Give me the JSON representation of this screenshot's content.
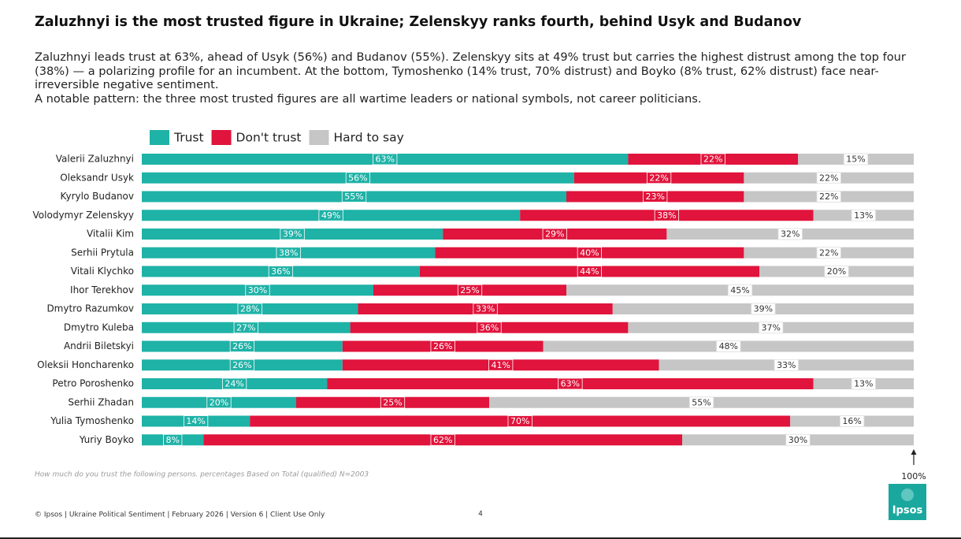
{
  "header": {
    "title": "Zaluzhnyi is the most trusted figure in Ukraine; Zelenskyy ranks fourth, behind Usyk and Budanov",
    "paragraphs": [
      "Zaluzhnyi leads trust at 63%, ahead of Usyk (56%) and Budanov (55%). Zelenskyy sits at 49% trust but carries the highest distrust among the top four (38%) — a polarizing profile for an incumbent. At the bottom, Tymoshenko (14% trust, 70% distrust) and Boyko (8% trust, 62% distrust) face near-irreversible negative sentiment.",
      "A notable pattern: the three most trusted figures are all wartime leaders or national symbols, not career politicians."
    ]
  },
  "chart_data": {
    "type": "stacked_bar_horizontal",
    "categories": [
      "Valerii Zaluzhnyi",
      "Oleksandr Usyk",
      "Kyrylo Budanov",
      "Volodymyr Zelenskyy",
      "Vitalii Kim",
      "Serhii Prytula",
      "Vitali Klychko",
      "Ihor Terekhov",
      "Dmytro Razumkov",
      "Dmytro Kuleba",
      "Andrii Biletskyi",
      "Oleksii Honcharenko",
      "Petro Poroshenko",
      "Serhii Zhadan",
      "Yulia Tymoshenko",
      "Yuriy Boyko"
    ],
    "series": [
      {
        "name": "Trust",
        "color": "#1fb2a7",
        "values": [
          63,
          56,
          55,
          49,
          39,
          38,
          36,
          30,
          28,
          27,
          26,
          26,
          24,
          20,
          14,
          8
        ],
        "value_labels": [
          "63%",
          "56%",
          "55%",
          "49%",
          "39%",
          "38%",
          "36%",
          "30%",
          "28%",
          "27%",
          "26%",
          "26%",
          "24%",
          "20%",
          "14%",
          "8%"
        ]
      },
      {
        "name": "Don't trust",
        "color": "#e0143c",
        "values": [
          22,
          22,
          23,
          38,
          29,
          40,
          44,
          25,
          33,
          36,
          26,
          41,
          63,
          25,
          70,
          62
        ],
        "value_labels": [
          "22%",
          "22%",
          "23%",
          "38%",
          "29%",
          "40%",
          "44%",
          "25%",
          "33%",
          "36%",
          "26%",
          "41%",
          "63%",
          "25%",
          "70%",
          "62%"
        ]
      },
      {
        "name": "Hard to say",
        "color": "#c6c6c6",
        "values": [
          15,
          22,
          22,
          13,
          32,
          22,
          20,
          45,
          39,
          37,
          48,
          33,
          13,
          55,
          16,
          30
        ],
        "value_labels": [
          "15%",
          "22%",
          "22%",
          "13%",
          "32%",
          "22%",
          "20%",
          "45%",
          "39%",
          "37%",
          "48%",
          "33%",
          "13%",
          "55%",
          "16%",
          "30%"
        ]
      }
    ],
    "xlim": [
      0,
      100
    ],
    "xticks": [
      {
        "value": 100,
        "label": "100%"
      }
    ],
    "legend": "top-left",
    "note": "How much do you trust the following persons. percentages Based on Total (qualified) N=2003"
  },
  "footer": {
    "text": "© Ipsos | Ukraine Political Sentiment | February 2026 | Version 6 | Client Use Only",
    "page": "4",
    "logo": "Ipsos"
  }
}
